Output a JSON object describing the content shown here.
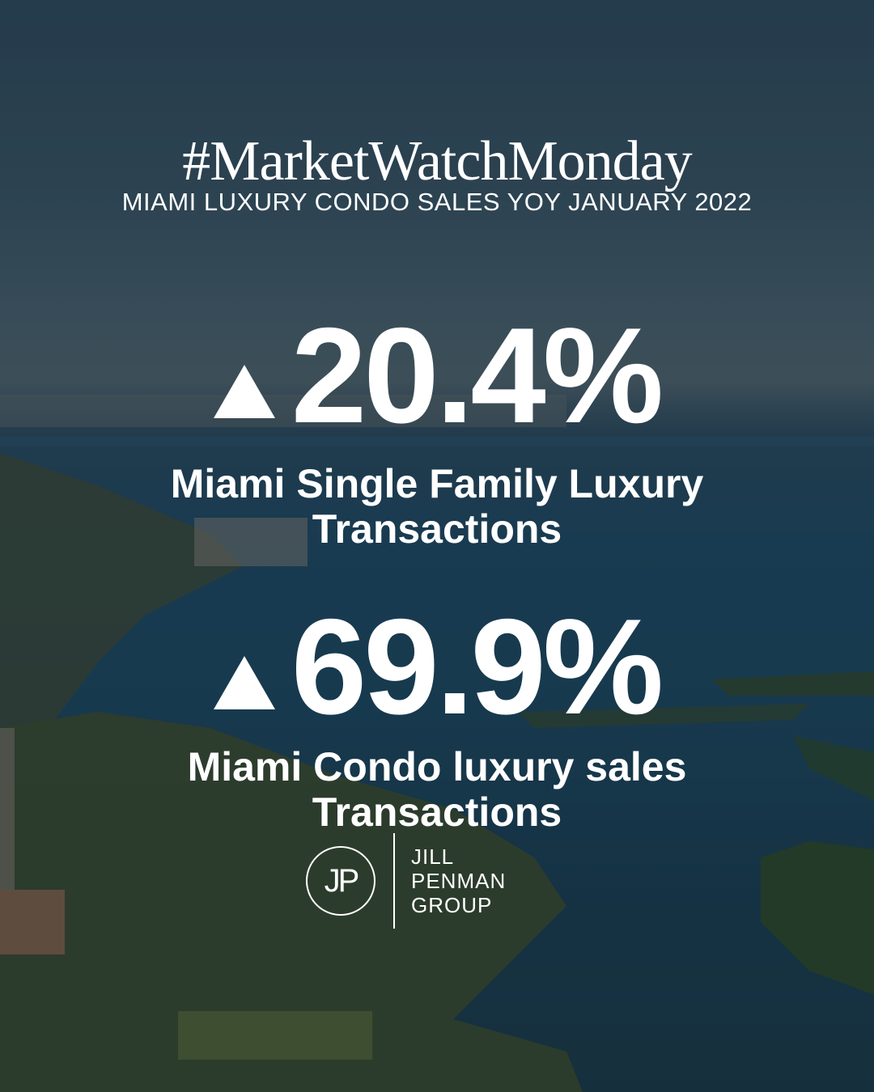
{
  "header": {
    "hashtag": "#MarketWatchMonday",
    "subtitle": "MIAMI LUXURY CONDO SALES YOY JANUARY 2022"
  },
  "stats": [
    {
      "icon": "up-triangle-icon",
      "value": "20.4%",
      "label_line1": "Miami Single Family Luxury",
      "label_line2": "Transactions"
    },
    {
      "icon": "up-triangle-icon",
      "value": "69.9%",
      "label_line1": "Miami Condo luxury sales",
      "label_line2": "Transactions"
    }
  ],
  "logo": {
    "monogram": "JP",
    "line1": "JILL",
    "line2": "PENMAN",
    "line3": "GROUP"
  },
  "colors": {
    "text": "#ffffff",
    "sky": "#3a5566",
    "water": "#1d4761",
    "land": "#3a4a30"
  }
}
